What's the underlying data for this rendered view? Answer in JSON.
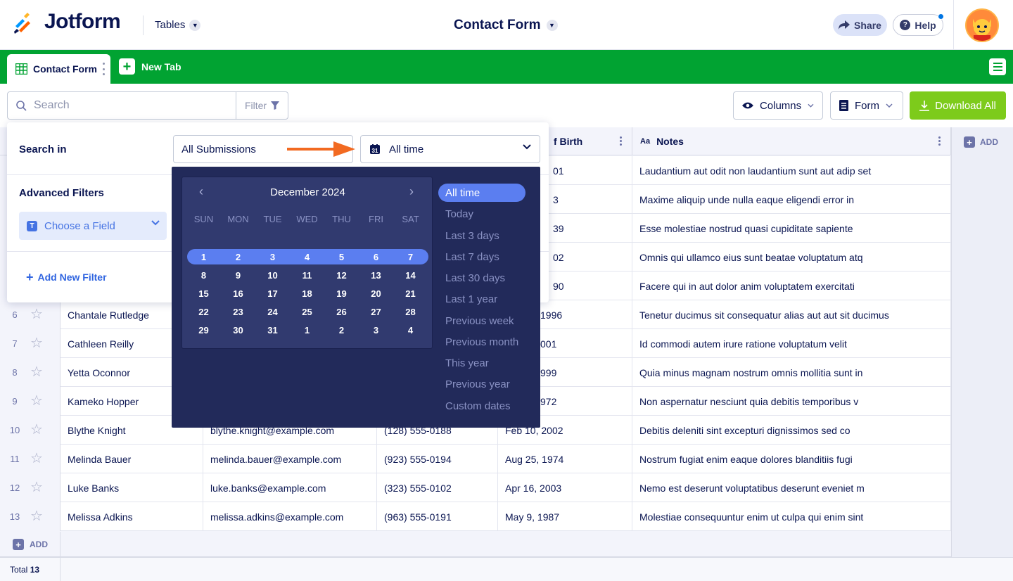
{
  "header": {
    "brand": "Jotform",
    "tables_label": "Tables",
    "form_title": "Contact Form",
    "share_label": "Share",
    "help_label": "Help"
  },
  "tabs": {
    "active_label": "Contact Form",
    "new_tab_label": "New Tab"
  },
  "toolbar": {
    "search_placeholder": "Search",
    "filter_label": "Filter",
    "columns_label": "Columns",
    "form_label": "Form",
    "download_label": "Download All"
  },
  "grid": {
    "headers": [
      {
        "label": "f Birth"
      },
      {
        "label": "Notes"
      }
    ],
    "add_column_label": "ADD",
    "add_row_label": "ADD",
    "total_label": "Total",
    "total_value": "13",
    "notes_rows": [
      {
        "dob": "01",
        "notes": "Laudantium aut odit non laudantium sunt aut adip set"
      },
      {
        "dob": "3",
        "notes": "Maxime aliquip unde nulla eaque eligendi error in"
      },
      {
        "dob": "39",
        "notes": "Esse molestiae nostrud quasi cupiditate sapiente"
      },
      {
        "dob": "02",
        "notes": "Omnis qui ullamco eius sunt beatae voluptatum atq"
      },
      {
        "dob": "90",
        "notes": "Facere qui in aut dolor anim voluptatem exercitati"
      }
    ],
    "rows": [
      {
        "num": "6",
        "name": "Chantale Rutledge",
        "email": "",
        "phone": "",
        "dob": "1996",
        "notes": "Tenetur ducimus sit consequatur alias aut aut sit ducimus"
      },
      {
        "num": "7",
        "name": "Cathleen Reilly",
        "email": "",
        "phone": "",
        "dob": "001",
        "notes": "Id commodi autem irure ratione voluptatum velit"
      },
      {
        "num": "8",
        "name": "Yetta Oconnor",
        "email": "",
        "phone": "",
        "dob": "999",
        "notes": "Quia minus magnam nostrum omnis mollitia sunt in"
      },
      {
        "num": "9",
        "name": "Kameko Hopper",
        "email": "",
        "phone": "",
        "dob": "972",
        "notes": "Non aspernatur nesciunt quia debitis temporibus v"
      },
      {
        "num": "10",
        "name": "Blythe Knight",
        "email": "blythe.knight@example.com",
        "phone": "(128) 555-0188",
        "dob": "Feb 10, 2002",
        "notes": "Debitis deleniti sint excepturi dignissimos sed co"
      },
      {
        "num": "11",
        "name": "Melinda Bauer",
        "email": "melinda.bauer@example.com",
        "phone": "(923) 555-0194",
        "dob": "Aug 25, 1974",
        "notes": "Nostrum fugiat enim eaque dolores blanditiis fugi"
      },
      {
        "num": "12",
        "name": "Luke Banks",
        "email": "luke.banks@example.com",
        "phone": "(323) 555-0102",
        "dob": "Apr 16, 2003",
        "notes": "Nemo est deserunt voluptatibus deserunt eveniet m"
      },
      {
        "num": "13",
        "name": "Melissa Adkins",
        "email": "melissa.adkins@example.com",
        "phone": "(963) 555-0191",
        "dob": "May 9, 1987",
        "notes": "Molestiae consequuntur enim ut culpa qui enim sint"
      }
    ]
  },
  "filter_panel": {
    "search_in_label": "Search in",
    "submissions_value": "All Submissions",
    "time_value": "All time",
    "advanced_label": "Advanced Filters",
    "choose_field_label": "Choose a Field",
    "add_filter_label": "Add New Filter"
  },
  "datepicker": {
    "month_label": "December 2024",
    "weekdays": [
      "SUN",
      "MON",
      "TUE",
      "WED",
      "THU",
      "FRI",
      "SAT"
    ],
    "weeks": [
      [
        "1",
        "2",
        "3",
        "4",
        "5",
        "6",
        "7"
      ],
      [
        "8",
        "9",
        "10",
        "11",
        "12",
        "13",
        "14"
      ],
      [
        "15",
        "16",
        "17",
        "18",
        "19",
        "20",
        "21"
      ],
      [
        "22",
        "23",
        "24",
        "25",
        "26",
        "27",
        "28"
      ],
      [
        "29",
        "30",
        "31",
        "1",
        "2",
        "3",
        "4"
      ]
    ],
    "presets": [
      "All time",
      "Today",
      "Last 3 days",
      "Last 7 days",
      "Last 30 days",
      "Last 1 year",
      "Previous week",
      "Previous month",
      "This year",
      "Previous year",
      "Custom dates"
    ],
    "active_preset": "All time"
  },
  "colors": {
    "brand_green": "#01a332",
    "download_green": "#7dcb1b",
    "picker_bg": "#222a5a",
    "highlight": "#5b7ef0",
    "annotation_arrow": "#f26a21"
  }
}
